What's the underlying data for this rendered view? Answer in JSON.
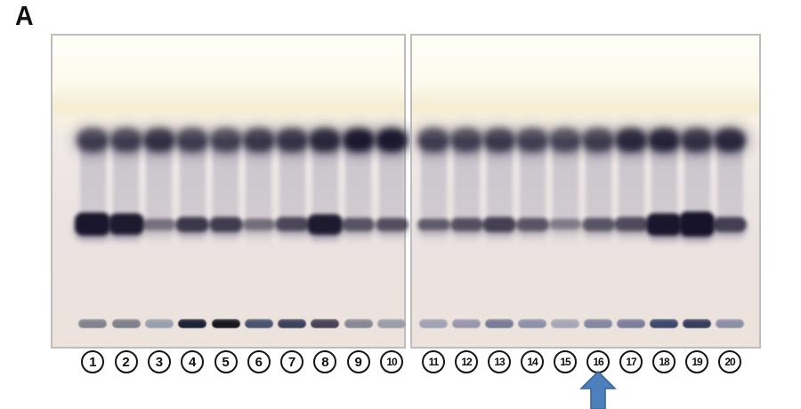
{
  "figure_label": "A",
  "colors": {
    "ink": "#16132a",
    "panel_border": "#bdbdbd",
    "arrow_fill": "#4d7fba",
    "arrow_stroke": "#3a679f"
  },
  "left_panel": {
    "lanes": [
      {
        "label": "1",
        "top_band_opacity": 0.74,
        "mid_band_opacity": 0.98,
        "mid_band_height": 26,
        "origin_band_color": "#83838e"
      },
      {
        "label": "2",
        "top_band_opacity": 0.74,
        "mid_band_opacity": 0.96,
        "mid_band_height": 24,
        "origin_band_color": "#7f818d"
      },
      {
        "label": "3",
        "top_band_opacity": 0.82,
        "mid_band_opacity": 0.5,
        "mid_band_height": 13,
        "origin_band_color": "#99a0ad"
      },
      {
        "label": "4",
        "top_band_opacity": 0.74,
        "mid_band_opacity": 0.8,
        "mid_band_height": 17,
        "origin_band_color": "#1d2336"
      },
      {
        "label": "5",
        "top_band_opacity": 0.72,
        "mid_band_opacity": 0.78,
        "mid_band_height": 17,
        "origin_band_color": "#17191f"
      },
      {
        "label": "6",
        "top_band_opacity": 0.78,
        "mid_band_opacity": 0.52,
        "mid_band_height": 13,
        "origin_band_color": "#4a546f"
      },
      {
        "label": "7",
        "top_band_opacity": 0.8,
        "mid_band_opacity": 0.72,
        "mid_band_height": 16,
        "origin_band_color": "#3d425b"
      },
      {
        "label": "8",
        "top_band_opacity": 0.88,
        "mid_band_opacity": 0.96,
        "mid_band_height": 23,
        "origin_band_color": "#494357"
      },
      {
        "label": "9",
        "top_band_opacity": 0.96,
        "mid_band_opacity": 0.66,
        "mid_band_height": 15,
        "origin_band_color": "#878995"
      },
      {
        "label": "10",
        "top_band_opacity": 0.97,
        "mid_band_opacity": 0.68,
        "mid_band_height": 15,
        "origin_band_color": "#9b9ea7"
      }
    ]
  },
  "right_panel": {
    "lanes": [
      {
        "label": "11",
        "top_band_opacity": 0.74,
        "mid_band_opacity": 0.62,
        "mid_band_height": 13,
        "origin_band_color": "#a1a2b5"
      },
      {
        "label": "12",
        "top_band_opacity": 0.73,
        "mid_band_opacity": 0.68,
        "mid_band_height": 15,
        "origin_band_color": "#9997ad"
      },
      {
        "label": "13",
        "top_band_opacity": 0.76,
        "mid_band_opacity": 0.76,
        "mid_band_height": 17,
        "origin_band_color": "#797c99"
      },
      {
        "label": "14",
        "top_band_opacity": 0.72,
        "mid_band_opacity": 0.65,
        "mid_band_height": 15,
        "origin_band_color": "#8e91aa"
      },
      {
        "label": "15",
        "top_band_opacity": 0.7,
        "mid_band_opacity": 0.45,
        "mid_band_height": 12,
        "origin_band_color": "#a6a6b7"
      },
      {
        "label": "16",
        "top_band_opacity": 0.74,
        "mid_band_opacity": 0.65,
        "mid_band_height": 15,
        "origin_band_color": "#8487a1"
      },
      {
        "label": "17",
        "top_band_opacity": 0.88,
        "mid_band_opacity": 0.7,
        "mid_band_height": 16,
        "origin_band_color": "#7c7f9c"
      },
      {
        "label": "18",
        "top_band_opacity": 0.9,
        "mid_band_opacity": 0.98,
        "mid_band_height": 25,
        "origin_band_color": "#3f496c"
      },
      {
        "label": "19",
        "top_band_opacity": 0.82,
        "mid_band_opacity": 1.0,
        "mid_band_height": 28,
        "origin_band_color": "#383f5d"
      },
      {
        "label": "20",
        "top_band_opacity": 0.88,
        "mid_band_opacity": 0.76,
        "mid_band_height": 17,
        "origin_band_color": "#8d90a7"
      }
    ]
  },
  "arrow": {
    "points_to_lane": "16"
  }
}
